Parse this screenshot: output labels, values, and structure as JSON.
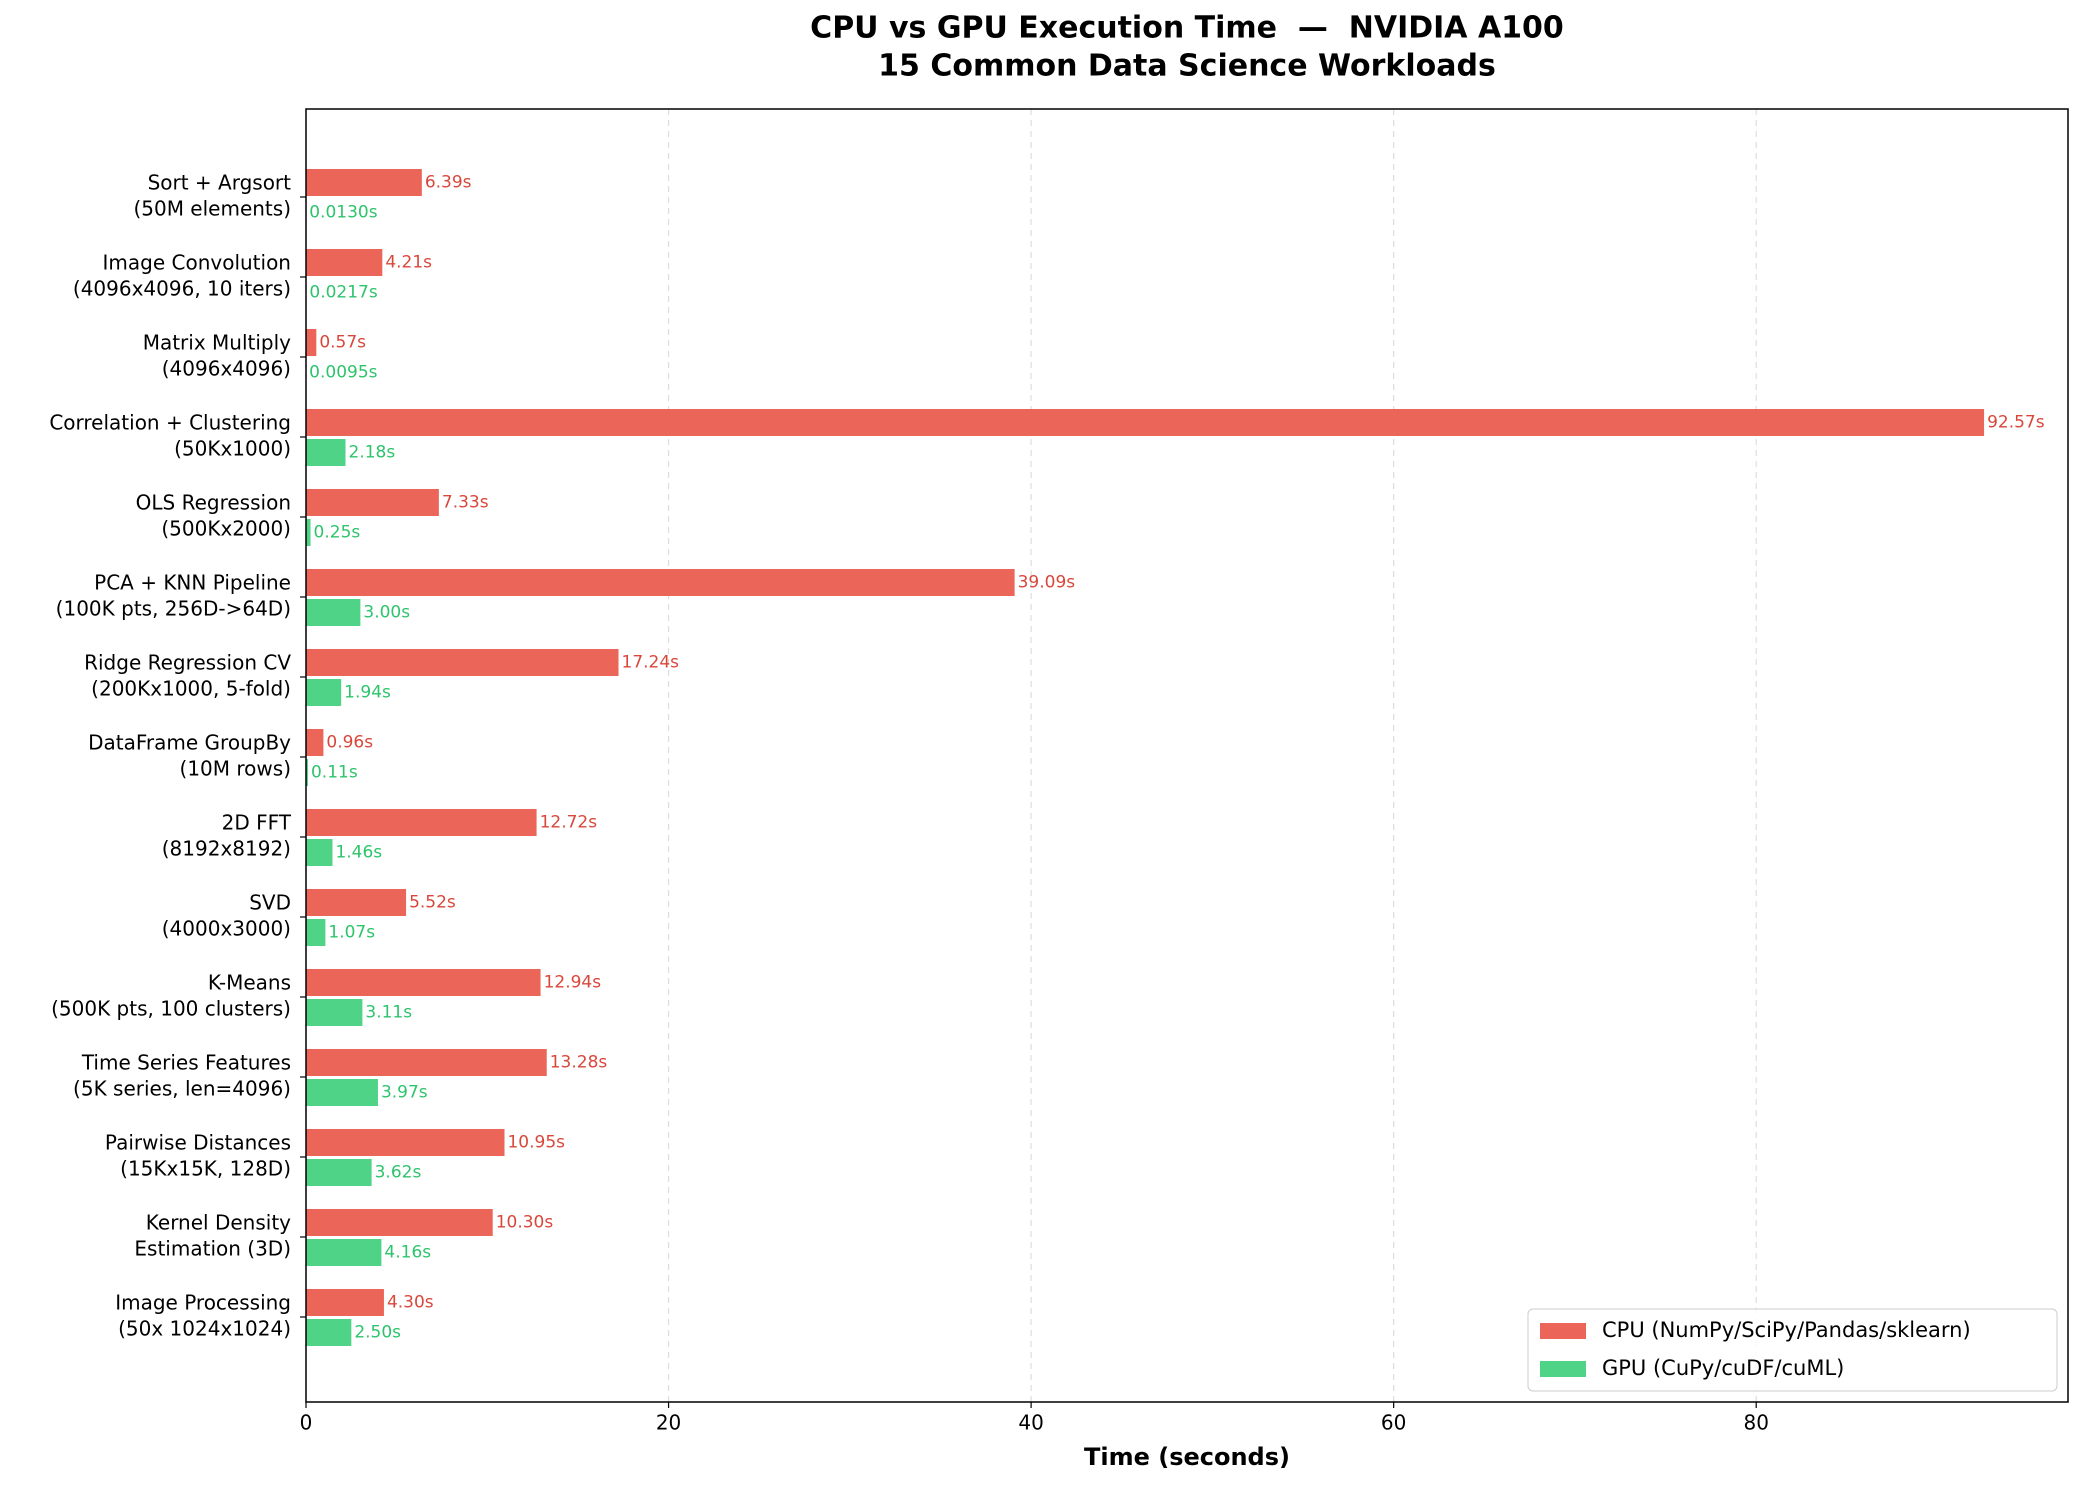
{
  "chart_data": {
    "type": "bar",
    "orientation": "horizontal",
    "title": "CPU vs GPU Execution Time  —  NVIDIA A100",
    "subtitle": "15 Common Data Science Workloads",
    "x_label": "Time (seconds)",
    "categories": [
      [
        "Sort + Argsort",
        "(50M elements)"
      ],
      [
        "Image Convolution",
        "(4096x4096, 10 iters)"
      ],
      [
        "Matrix Multiply",
        "(4096x4096)"
      ],
      [
        "Correlation + Clustering",
        "(50Kx1000)"
      ],
      [
        "OLS Regression",
        "(500Kx2000)"
      ],
      [
        "PCA + KNN Pipeline",
        "(100K pts, 256D->64D)"
      ],
      [
        "Ridge Regression CV",
        "(200Kx1000, 5-fold)"
      ],
      [
        "DataFrame GroupBy",
        "(10M rows)"
      ],
      [
        "2D FFT",
        "(8192x8192)"
      ],
      [
        "SVD",
        "(4000x3000)"
      ],
      [
        "K-Means",
        "(500K pts, 100 clusters)"
      ],
      [
        "Time Series Features",
        "(5K series, len=4096)"
      ],
      [
        "Pairwise Distances",
        "(15Kx15K, 128D)"
      ],
      [
        "Kernel Density",
        "Estimation (3D)"
      ],
      [
        "Image Processing",
        "(50x 1024x1024)"
      ]
    ],
    "series": [
      {
        "name": "CPU (NumPy/SciPy/Pandas/sklearn)",
        "color": "#eb6659",
        "label_color": "#d9473b",
        "values": [
          6.39,
          4.21,
          0.57,
          92.57,
          7.33,
          39.09,
          17.24,
          0.96,
          12.72,
          5.52,
          12.94,
          13.28,
          10.95,
          10.3,
          4.3
        ],
        "value_labels": [
          "6.39s",
          "4.21s",
          "0.57s",
          "92.57s",
          "7.33s",
          "39.09s",
          "17.24s",
          "0.96s",
          "12.72s",
          "5.52s",
          "12.94s",
          "13.28s",
          "10.95s",
          "10.30s",
          "4.30s"
        ]
      },
      {
        "name": "GPU (CuPy/cuDF/cuML)",
        "color": "#4fd487",
        "label_color": "#2ec46c",
        "values": [
          0.013,
          0.0217,
          0.0095,
          2.18,
          0.25,
          3.0,
          1.94,
          0.11,
          1.46,
          1.07,
          3.11,
          3.97,
          3.62,
          4.16,
          2.5
        ],
        "value_labels": [
          "0.0130s",
          "0.0217s",
          "0.0095s",
          "2.18s",
          "0.25s",
          "3.00s",
          "1.94s",
          "0.11s",
          "1.46s",
          "1.07s",
          "3.11s",
          "3.97s",
          "3.62s",
          "4.16s",
          "2.50s"
        ]
      }
    ],
    "xlim": [
      0,
      97.2
    ],
    "xticks": [
      0,
      20,
      40,
      60,
      80
    ],
    "grid": true,
    "legend": "lower right"
  }
}
